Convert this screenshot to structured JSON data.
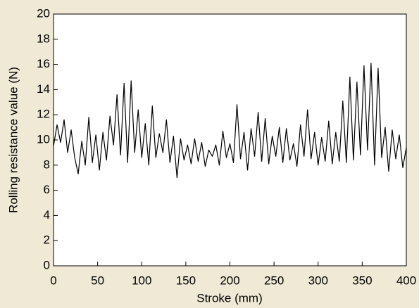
{
  "chart_data": {
    "type": "line",
    "xlabel": "Stroke (mm)",
    "ylabel": "Rolling resistance value (N)",
    "xlim": [
      0,
      400
    ],
    "xticks": [
      0,
      50,
      100,
      150,
      200,
      250,
      300,
      350,
      400
    ],
    "ylim": [
      0,
      20
    ],
    "yticks": [
      0,
      2,
      4,
      6,
      8,
      10,
      12,
      14,
      16,
      18,
      20
    ],
    "x": [
      0,
      4,
      8,
      12,
      16,
      20,
      24,
      28,
      32,
      36,
      40,
      44,
      48,
      52,
      56,
      60,
      64,
      68,
      72,
      76,
      80,
      84,
      88,
      92,
      96,
      100,
      104,
      108,
      112,
      116,
      120,
      124,
      128,
      132,
      136,
      140,
      144,
      148,
      152,
      156,
      160,
      164,
      168,
      172,
      176,
      180,
      184,
      188,
      192,
      196,
      200,
      204,
      208,
      212,
      216,
      220,
      224,
      228,
      232,
      236,
      240,
      244,
      248,
      252,
      256,
      260,
      264,
      268,
      272,
      276,
      280,
      284,
      288,
      292,
      296,
      300,
      304,
      308,
      312,
      316,
      320,
      324,
      328,
      332,
      336,
      340,
      344,
      348,
      352,
      356,
      360,
      364,
      368,
      372,
      376,
      380,
      384,
      388,
      392,
      396,
      400
    ],
    "series": [
      {
        "color": "#000000",
        "values": [
          9.5,
          11.2,
          9.8,
          11.6,
          9.0,
          10.8,
          8.6,
          7.3,
          9.9,
          8.0,
          11.8,
          8.2,
          10.4,
          7.6,
          10.6,
          8.4,
          11.9,
          9.6,
          13.6,
          8.8,
          14.5,
          8.2,
          14.7,
          9.0,
          12.4,
          8.6,
          11.3,
          8.0,
          12.7,
          8.6,
          10.5,
          9.0,
          11.6,
          8.2,
          10.3,
          7.0,
          10.1,
          8.4,
          9.6,
          8.1,
          10.1,
          8.3,
          9.8,
          7.9,
          9.2,
          8.7,
          9.6,
          8.0,
          10.7,
          8.6,
          9.7,
          8.2,
          12.8,
          8.5,
          10.6,
          7.6,
          10.9,
          8.7,
          12.2,
          8.3,
          11.7,
          8.1,
          10.3,
          8.7,
          11.0,
          8.2,
          10.9,
          8.4,
          9.7,
          7.9,
          11.2,
          8.7,
          12.4,
          8.5,
          10.6,
          8.0,
          10.2,
          8.3,
          11.5,
          8.1,
          10.6,
          8.3,
          13.1,
          8.2,
          15.0,
          8.4,
          14.6,
          8.8,
          15.9,
          9.2,
          16.1,
          8.0,
          15.7,
          8.6,
          11.0,
          7.5,
          10.8,
          8.5,
          10.4,
          7.8,
          9.4
        ]
      }
    ]
  }
}
